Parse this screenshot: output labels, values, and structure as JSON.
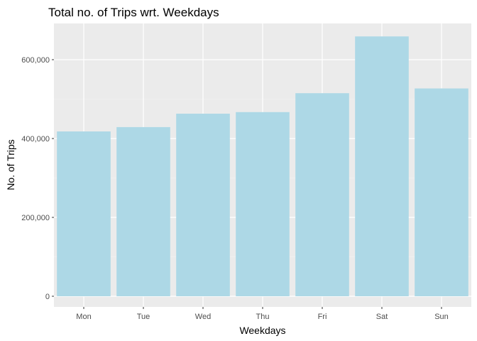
{
  "chart_data": {
    "type": "bar",
    "title": "Total no. of Trips wrt. Weekdays",
    "xlabel": "Weekdays",
    "ylabel": "No. of Trips",
    "categories": [
      "Mon",
      "Tue",
      "Wed",
      "Thu",
      "Fri",
      "Sat",
      "Sun"
    ],
    "values": [
      418000,
      429000,
      463000,
      467000,
      515000,
      659000,
      527000
    ],
    "ylim": [
      0,
      690000
    ],
    "yticks": [
      0,
      200000,
      400000,
      600000
    ],
    "ytick_labels": [
      "0",
      "200,000",
      "400,000",
      "600,000"
    ],
    "grid": true,
    "legend": "none"
  },
  "colors": {
    "bar": "#add8e6",
    "panel_background": "#ebebeb",
    "grid_major": "#ffffff",
    "grid_minor": "#f5f5f5",
    "tick_text": "#4d4d4d"
  }
}
